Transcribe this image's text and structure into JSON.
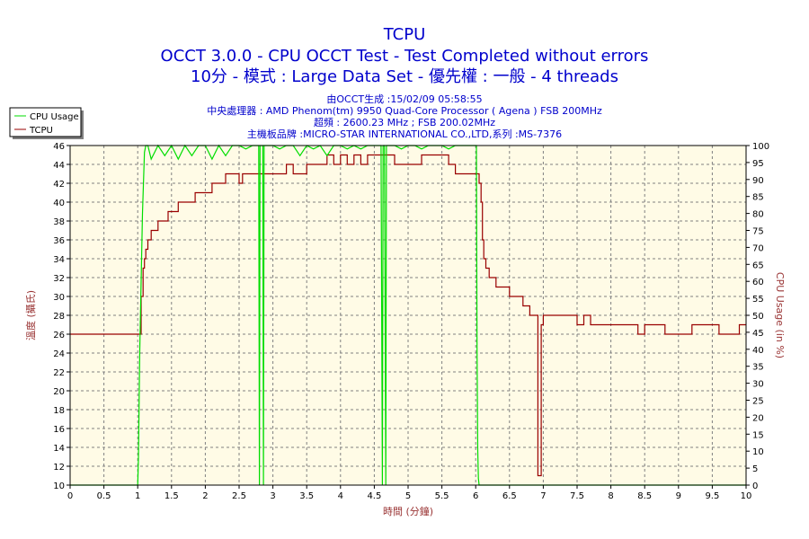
{
  "title": "TCPU",
  "subtitle": "OCCT 3.0.0 - CPU OCCT Test - Test Completed without errors",
  "subtitle2": "10分 - 模式 : Large Data Set - 優先權 : 一般 - 4 threads",
  "info": [
    "由OCCT生成 :15/02/09 05:58:55",
    "中央處理器 : AMD Phenom(tm) 9950 Quad-Core Processor ( Agena ) FSB 200MHz",
    "超頻 : 2600.23 MHz ; FSB 200.02MHz",
    "主機板品牌 :MICRO-STAR INTERNATIONAL CO.,LTD,系列 :MS-7376"
  ],
  "legend": [
    "CPU Usage",
    "TCPU"
  ],
  "colors": {
    "title": "#0000cc",
    "cpu_usage": "#00dd00",
    "tcpu": "#990000",
    "plot_bg": "#fffbe6",
    "axis_title": "#993333"
  },
  "chart_data": {
    "type": "line",
    "xlabel": "時間 (分鐘)",
    "ylabel_left": "溫度 (攝氏)",
    "ylabel_right": "CPU Usage (in %)",
    "xlim": [
      0,
      10
    ],
    "ylim_left": [
      10,
      46
    ],
    "ylim_right": [
      0,
      100
    ],
    "x_ticks": [
      "0",
      "0.5",
      "1",
      "1.5",
      "2",
      "2.5",
      "3",
      "3.5",
      "4",
      "4.5",
      "5",
      "5.5",
      "6",
      "6.5",
      "7",
      "7.5",
      "8",
      "8.5",
      "9",
      "9.5",
      "10"
    ],
    "y_ticks_left": [
      "10",
      "12",
      "14",
      "16",
      "18",
      "20",
      "22",
      "24",
      "26",
      "28",
      "30",
      "32",
      "34",
      "36",
      "38",
      "40",
      "42",
      "44",
      "46"
    ],
    "y_ticks_right": [
      "0",
      "5",
      "10",
      "15",
      "20",
      "25",
      "30",
      "35",
      "40",
      "45",
      "50",
      "55",
      "60",
      "65",
      "70",
      "75",
      "80",
      "85",
      "90",
      "95",
      "100"
    ],
    "grid": true,
    "legend_position": "top-left",
    "series": [
      {
        "name": "TCPU",
        "axis": "left",
        "x": [
          0,
          1.05,
          1.05,
          1.08,
          1.1,
          1.12,
          1.15,
          1.2,
          1.25,
          1.3,
          1.4,
          1.45,
          1.5,
          1.55,
          1.6,
          1.65,
          1.7,
          1.8,
          1.85,
          1.95,
          2.0,
          2.1,
          2.2,
          2.3,
          2.4,
          2.5,
          2.55,
          2.6,
          2.7,
          2.8,
          2.9,
          3.0,
          3.1,
          3.2,
          3.3,
          3.4,
          3.5,
          3.6,
          3.7,
          3.8,
          3.9,
          4.0,
          4.1,
          4.2,
          4.3,
          4.4,
          4.5,
          4.6,
          4.7,
          4.8,
          4.9,
          5.0,
          5.1,
          5.2,
          5.3,
          5.4,
          5.5,
          5.6,
          5.7,
          5.8,
          5.9,
          6.0,
          6.05,
          6.08,
          6.1,
          6.12,
          6.15,
          6.2,
          6.3,
          6.4,
          6.5,
          6.6,
          6.7,
          6.8,
          6.85,
          6.9,
          6.92,
          6.95,
          6.97,
          7.0,
          7.05,
          7.1,
          7.2,
          7.3,
          7.4,
          7.5,
          7.6,
          7.7,
          7.8,
          7.9,
          8.0,
          8.1,
          8.2,
          8.3,
          8.4,
          8.5,
          8.6,
          8.7,
          8.8,
          8.9,
          9.0,
          9.1,
          9.2,
          9.3,
          9.4,
          9.5,
          9.6,
          9.7,
          9.8,
          9.9,
          10.0
        ],
        "values": [
          26,
          26,
          30,
          33,
          34,
          35,
          36,
          37,
          37,
          38,
          38,
          39,
          39,
          39,
          40,
          40,
          40,
          40,
          41,
          41,
          41,
          42,
          42,
          43,
          43,
          42,
          43,
          43,
          43,
          43,
          43,
          43,
          43,
          44,
          43,
          43,
          44,
          44,
          44,
          45,
          44,
          45,
          44,
          45,
          44,
          45,
          45,
          45,
          45,
          44,
          44,
          44,
          44,
          45,
          45,
          45,
          45,
          44,
          43,
          43,
          43,
          43,
          42,
          40,
          36,
          34,
          33,
          32,
          31,
          31,
          30,
          30,
          29,
          28,
          28,
          28,
          11,
          11,
          27,
          28,
          28,
          28,
          28,
          28,
          28,
          27,
          28,
          27,
          27,
          27,
          27,
          27,
          27,
          27,
          26,
          27,
          27,
          27,
          26,
          26,
          26,
          26,
          27,
          27,
          27,
          27,
          26,
          26,
          26,
          27,
          27
        ]
      },
      {
        "name": "CPU Usage",
        "axis": "right",
        "x": [
          0,
          1.0,
          1.01,
          1.03,
          1.05,
          1.07,
          1.1,
          1.12,
          1.15,
          1.2,
          1.3,
          1.4,
          1.5,
          1.6,
          1.7,
          1.8,
          1.9,
          2.0,
          2.1,
          2.2,
          2.3,
          2.4,
          2.5,
          2.6,
          2.7,
          2.79,
          2.8,
          2.81,
          2.85,
          2.86,
          2.87,
          2.9,
          3.0,
          3.1,
          3.2,
          3.3,
          3.4,
          3.5,
          3.6,
          3.7,
          3.8,
          3.9,
          4.0,
          4.1,
          4.2,
          4.3,
          4.4,
          4.5,
          4.6,
          4.62,
          4.63,
          4.65,
          4.67,
          4.68,
          4.7,
          4.8,
          4.9,
          5.0,
          5.1,
          5.2,
          5.3,
          5.4,
          5.5,
          5.6,
          5.7,
          5.8,
          5.9,
          6.0,
          6.01,
          6.02,
          6.03,
          6.04,
          6.05,
          10.0
        ],
        "values": [
          0,
          0,
          8,
          40,
          60,
          80,
          98,
          100,
          100,
          96,
          100,
          97,
          100,
          96,
          100,
          97,
          100,
          100,
          96,
          100,
          97,
          100,
          100,
          99,
          100,
          100,
          0,
          100,
          100,
          0,
          100,
          100,
          100,
          99,
          100,
          100,
          97,
          100,
          99,
          100,
          97,
          100,
          100,
          99,
          100,
          99,
          100,
          100,
          100,
          0,
          100,
          100,
          0,
          100,
          100,
          100,
          99,
          100,
          100,
          99,
          100,
          100,
          100,
          99,
          100,
          100,
          100,
          100,
          100,
          40,
          10,
          2,
          0,
          0
        ]
      }
    ]
  }
}
